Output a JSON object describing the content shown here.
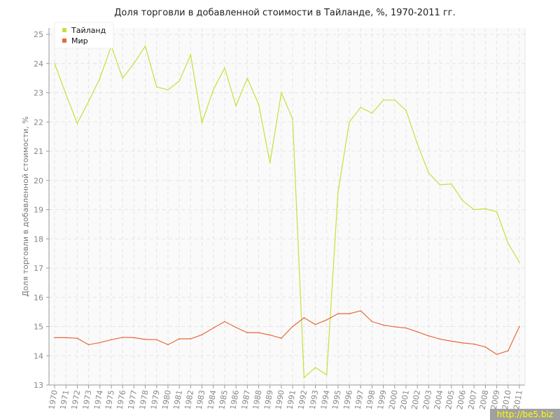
{
  "chart_data": {
    "type": "line",
    "title": "Доля торговли в добавленной стоимости в Тайланде, %, 1970-2011 гг.",
    "xlabel": "",
    "ylabel": "Доля торговли в добавленной стоимости, %",
    "ylim": [
      13,
      25
    ],
    "yticks": [
      "13",
      "14",
      "15",
      "16",
      "17",
      "18",
      "19",
      "20",
      "21",
      "22",
      "23",
      "24",
      "25"
    ],
    "grid": true,
    "legend_position": "top-left",
    "x": [
      "1970",
      "1971",
      "1972",
      "1973",
      "1974",
      "1975",
      "1976",
      "1977",
      "1978",
      "1979",
      "1980",
      "1981",
      "1982",
      "1983",
      "1984",
      "1985",
      "1986",
      "1987",
      "1988",
      "1989",
      "1990",
      "1991",
      "1992",
      "1993",
      "1994",
      "1995",
      "1996",
      "1997",
      "1998",
      "1999",
      "2000",
      "2001",
      "2002",
      "2003",
      "2004",
      "2005",
      "2006",
      "2007",
      "2008",
      "2009",
      "2010",
      "2011"
    ],
    "series": [
      {
        "name": "Тайланд",
        "color": "#c5e03a",
        "values": [
          24.0,
          22.95,
          21.95,
          22.7,
          23.5,
          24.6,
          23.5,
          24.0,
          24.6,
          23.2,
          23.1,
          23.4,
          24.3,
          21.98,
          23.1,
          23.85,
          22.55,
          23.5,
          22.6,
          20.6,
          23.0,
          22.1,
          13.25,
          13.6,
          13.35,
          19.6,
          22.0,
          22.5,
          22.3,
          22.75,
          22.75,
          22.4,
          21.25,
          20.25,
          19.85,
          19.88,
          19.3,
          19.0,
          19.03,
          18.93,
          17.85,
          17.2
        ]
      },
      {
        "name": "Мир",
        "color": "#e8683a",
        "values": [
          14.62,
          14.62,
          14.6,
          14.38,
          14.45,
          14.55,
          14.63,
          14.62,
          14.56,
          14.55,
          14.38,
          14.58,
          14.58,
          14.72,
          14.95,
          15.17,
          14.97,
          14.79,
          14.79,
          14.71,
          14.6,
          15.0,
          15.3,
          15.07,
          15.23,
          15.44,
          15.44,
          15.54,
          15.17,
          15.05,
          14.99,
          14.95,
          14.82,
          14.68,
          14.57,
          14.5,
          14.44,
          14.4,
          14.3,
          14.05,
          14.17,
          15.0
        ]
      }
    ]
  },
  "watermark": "http://be5.biz"
}
